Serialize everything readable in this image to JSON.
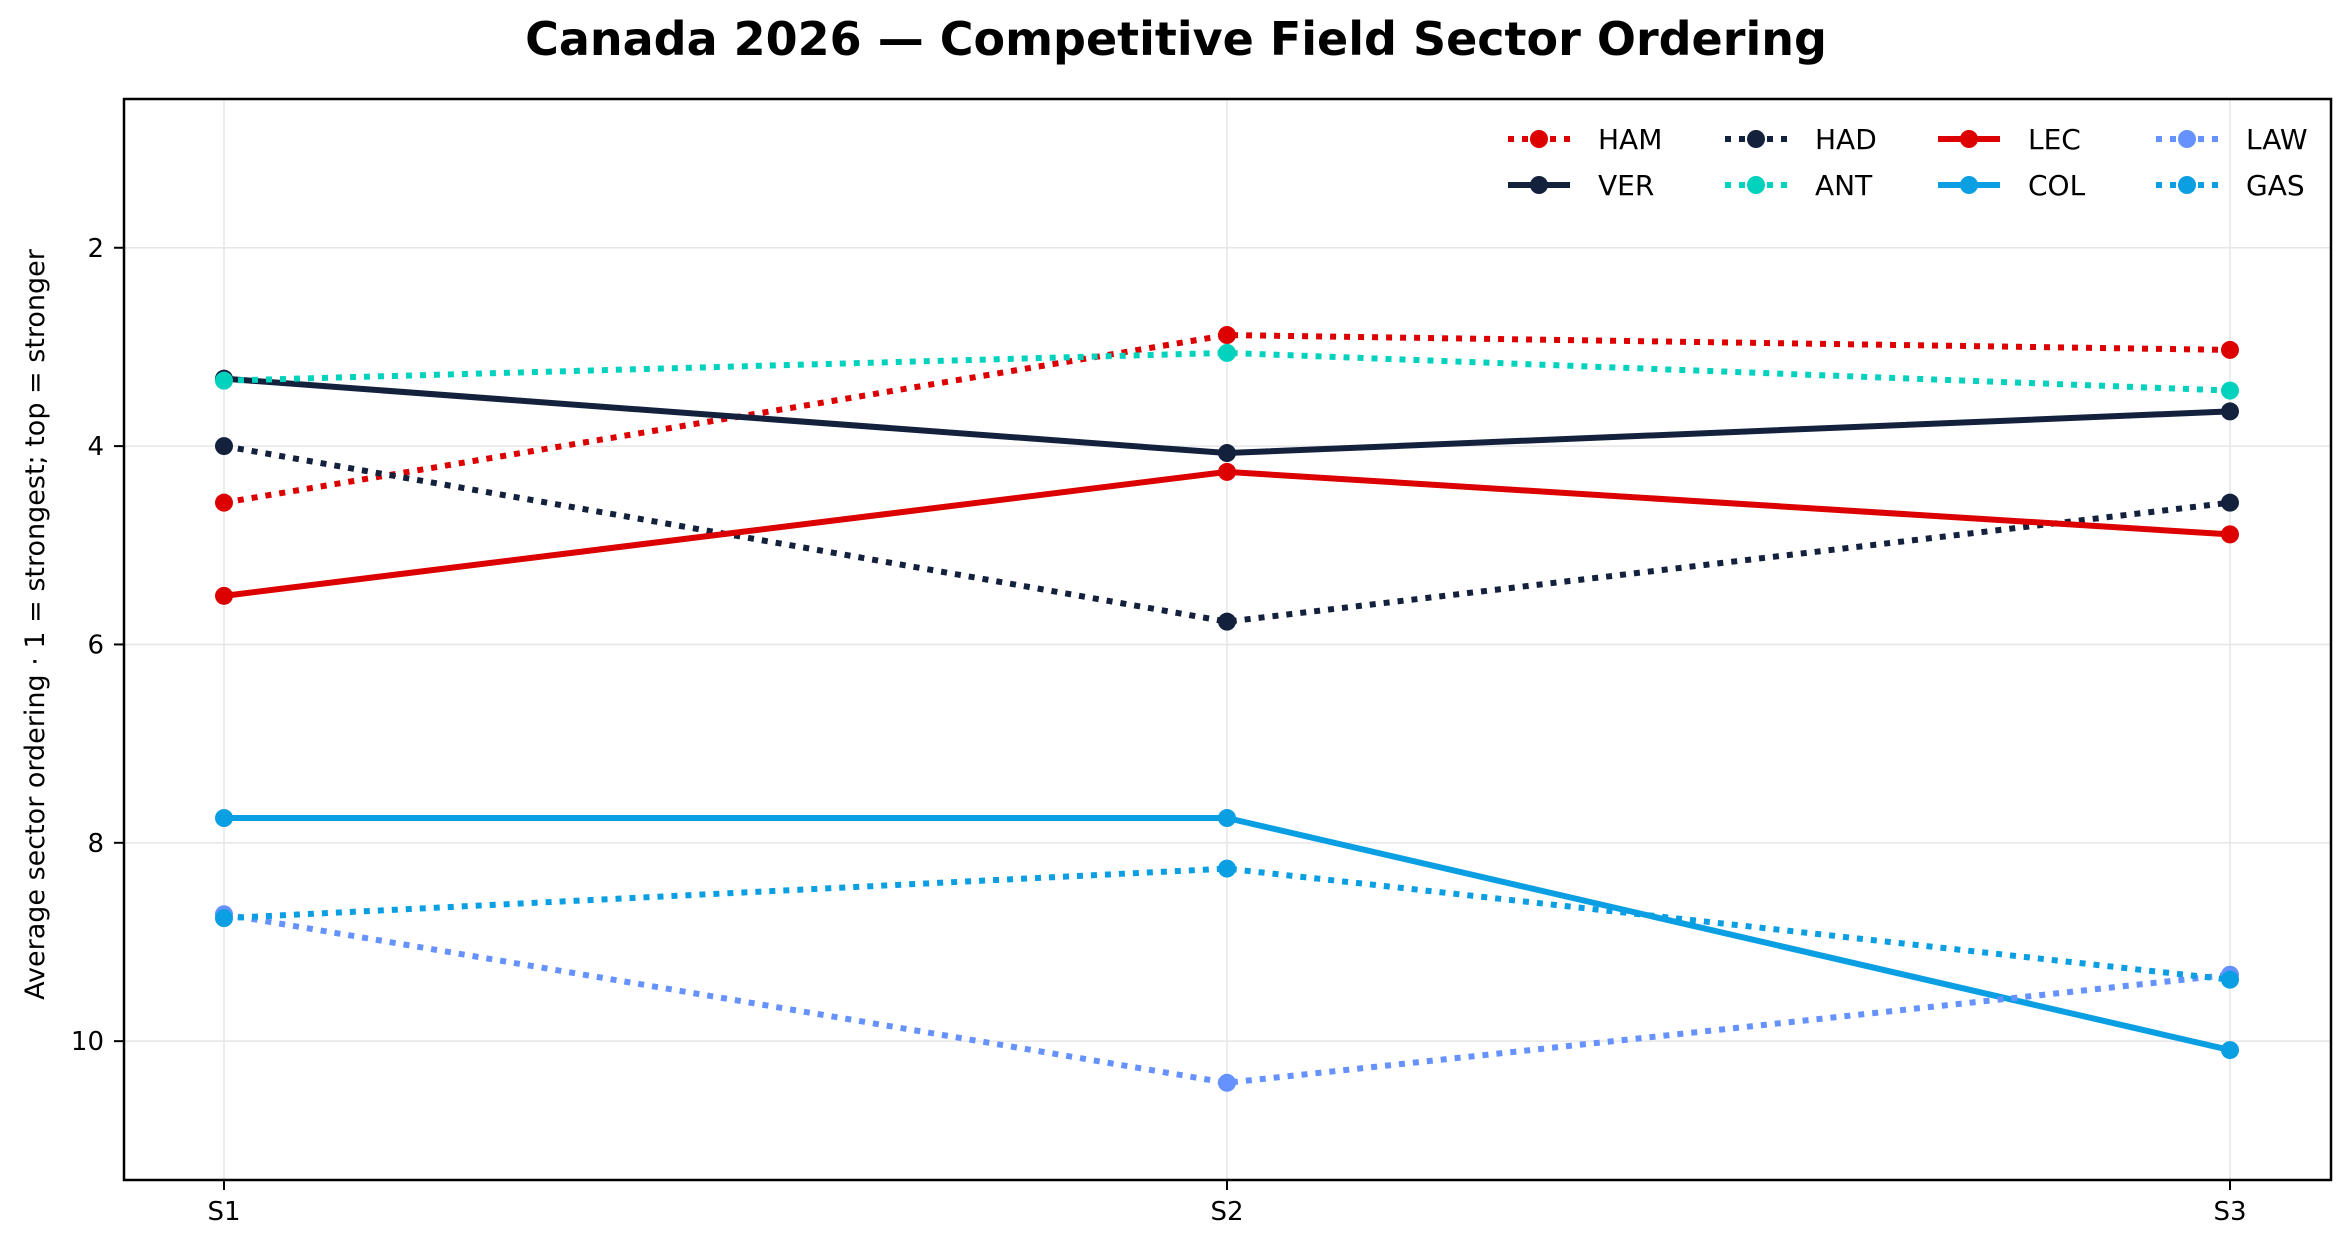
{
  "chart_data": {
    "type": "line",
    "title": "Canada 2026 — Competitive Field Sector Ordering",
    "xlabel": "",
    "ylabel": "Average sector ordering · 1 = strongest; top = stronger",
    "categories": [
      "S1",
      "S2",
      "S3"
    ],
    "ylim": [
      11.4,
      0.5
    ],
    "y_inverted": true,
    "yticks": [
      2,
      4,
      6,
      8,
      10
    ],
    "grid": true,
    "legend_position": "top-right",
    "legend_columns": 4,
    "series": [
      {
        "name": "HAM",
        "values": [
          4.57,
          2.88,
          3.03
        ],
        "color": "#dc0000",
        "style": "dotted"
      },
      {
        "name": "VER",
        "values": [
          3.32,
          4.07,
          3.65
        ],
        "color": "#14213d",
        "style": "solid"
      },
      {
        "name": "HAD",
        "values": [
          4.0,
          5.77,
          4.57
        ],
        "color": "#14213d",
        "style": "dotted"
      },
      {
        "name": "ANT",
        "values": [
          3.34,
          3.06,
          3.44
        ],
        "color": "#00d2be",
        "style": "dotted"
      },
      {
        "name": "LEC",
        "values": [
          5.51,
          4.26,
          4.89
        ],
        "color": "#dc0000",
        "style": "solid"
      },
      {
        "name": "COL",
        "values": [
          7.75,
          7.75,
          10.09
        ],
        "color": "#0a9ee2",
        "style": "solid"
      },
      {
        "name": "LAW",
        "values": [
          8.72,
          10.42,
          9.33
        ],
        "color": "#6692ff",
        "style": "dotted"
      },
      {
        "name": "GAS",
        "values": [
          8.76,
          8.26,
          9.38
        ],
        "color": "#0a9ee2",
        "style": "dotted"
      }
    ]
  }
}
